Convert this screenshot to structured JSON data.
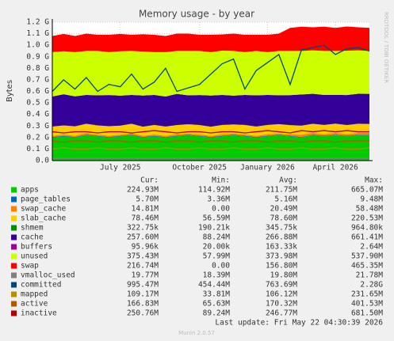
{
  "chart_data": {
    "type": "area",
    "title": "Memory usage - by year",
    "y_label": "Bytes",
    "side_text": "RRDTOOL / TOBI OETIKER",
    "last_update": "Last update: Fri May 22 04:30:39 2026",
    "version": "Munin 2.0.57",
    "legend_headers": [
      "Cur:",
      "Min:",
      "Avg:",
      "Max:"
    ],
    "categories": [
      null,
      null,
      null,
      null,
      null,
      null,
      "July 2025",
      null,
      null,
      null,
      null,
      null,
      null,
      "October 2025",
      null,
      null,
      null,
      null,
      null,
      "January 2026",
      null,
      null,
      null,
      null,
      null,
      "April 2026",
      null,
      null,
      null
    ],
    "ylim": [
      0,
      1.2
    ],
    "yticks": [
      {
        "value": 0,
        "label": "0.0"
      },
      {
        "value": 0.1,
        "label": "0.1 G"
      },
      {
        "value": 0.2,
        "label": "0.2 G"
      },
      {
        "value": 0.3,
        "label": "0.3 G"
      },
      {
        "value": 0.4,
        "label": "0.4 G"
      },
      {
        "value": 0.5,
        "label": "0.5 G"
      },
      {
        "value": 0.6,
        "label": "0.6 G"
      },
      {
        "value": 0.7,
        "label": "0.7 G"
      },
      {
        "value": 0.8,
        "label": "0.8 G"
      },
      {
        "value": 0.9,
        "label": "0.9 G"
      },
      {
        "value": 1.0,
        "label": "1.0 G"
      },
      {
        "value": 1.1,
        "label": "1.1 G"
      },
      {
        "value": 1.2,
        "label": "1.2 G"
      }
    ],
    "grid": true,
    "series": [
      {
        "name": "apps",
        "kind": "area",
        "color": "#00cc00",
        "stats": [
          "224.93M",
          "114.92M",
          "211.75M",
          "665.07M"
        ],
        "values": [
          0.2,
          0.21,
          0.2,
          0.22,
          0.21,
          0.2,
          0.21,
          0.22,
          0.2,
          0.21,
          0.2,
          0.21,
          0.22,
          0.21,
          0.2,
          0.21,
          0.22,
          0.21,
          0.2,
          0.21,
          0.22,
          0.21,
          0.2,
          0.22,
          0.21,
          0.22,
          0.21,
          0.22,
          0.22
        ]
      },
      {
        "name": "page_tables",
        "kind": "area",
        "color": "#0066b3",
        "stats": [
          "5.70M",
          "3.36M",
          "5.16M",
          "9.48M"
        ],
        "values": [
          0.005,
          0.005,
          0.005,
          0.005,
          0.005,
          0.005,
          0.005,
          0.005,
          0.005,
          0.005,
          0.005,
          0.005,
          0.005,
          0.005,
          0.005,
          0.005,
          0.005,
          0.005,
          0.005,
          0.005,
          0.005,
          0.005,
          0.005,
          0.005,
          0.005,
          0.005,
          0.005,
          0.005,
          0.005
        ]
      },
      {
        "name": "swap_cache",
        "kind": "area",
        "color": "#ff8000",
        "stats": [
          "14.81M",
          "0.00",
          "20.49M",
          "58.48M"
        ],
        "values": [
          0.01,
          0.012,
          0.01,
          0.015,
          0.01,
          0.012,
          0.01,
          0.014,
          0.01,
          0.012,
          0.01,
          0.015,
          0.01,
          0.012,
          0.01,
          0.014,
          0.01,
          0.012,
          0.01,
          0.015,
          0.01,
          0.012,
          0.02,
          0.015,
          0.014,
          0.016,
          0.015,
          0.015,
          0.015
        ]
      },
      {
        "name": "slab_cache",
        "kind": "area",
        "color": "#ffcc00",
        "stats": [
          "78.46M",
          "56.59M",
          "78.60M",
          "220.53M"
        ],
        "values": [
          0.08,
          0.078,
          0.082,
          0.079,
          0.08,
          0.081,
          0.078,
          0.08,
          0.079,
          0.082,
          0.08,
          0.078,
          0.08,
          0.081,
          0.079,
          0.08,
          0.078,
          0.082,
          0.08,
          0.079,
          0.081,
          0.08,
          0.078,
          0.079,
          0.08,
          0.079,
          0.078,
          0.079,
          0.078
        ]
      },
      {
        "name": "shmem",
        "kind": "area",
        "color": "#008f00",
        "stats": [
          "322.75k",
          "190.21k",
          "345.75k",
          "964.80k"
        ],
        "values": [
          0.0003,
          0.0003,
          0.0003,
          0.0003,
          0.0003,
          0.0003,
          0.0003,
          0.0003,
          0.0003,
          0.0003,
          0.0003,
          0.0003,
          0.0003,
          0.0003,
          0.0003,
          0.0003,
          0.0003,
          0.0003,
          0.0003,
          0.0003,
          0.0003,
          0.0003,
          0.0003,
          0.0003,
          0.0003,
          0.0003,
          0.0003,
          0.0003,
          0.0003
        ]
      },
      {
        "name": "cache",
        "kind": "area",
        "color": "#330099",
        "stats": [
          "257.60M",
          "88.24M",
          "266.88M",
          "661.41M"
        ],
        "values": [
          0.26,
          0.27,
          0.26,
          0.25,
          0.26,
          0.27,
          0.26,
          0.25,
          0.27,
          0.26,
          0.26,
          0.27,
          0.25,
          0.26,
          0.27,
          0.26,
          0.25,
          0.26,
          0.27,
          0.26,
          0.25,
          0.26,
          0.27,
          0.26,
          0.26,
          0.25,
          0.26,
          0.26,
          0.26
        ]
      },
      {
        "name": "buffers",
        "kind": "area",
        "color": "#990099",
        "stats": [
          "95.96k",
          "20.00k",
          "163.33k",
          "2.64M"
        ],
        "values": [
          0.0001,
          0.0001,
          0.0001,
          0.0001,
          0.0001,
          0.0001,
          0.0001,
          0.0001,
          0.0001,
          0.0001,
          0.0001,
          0.0001,
          0.0001,
          0.0001,
          0.0001,
          0.0001,
          0.0001,
          0.0001,
          0.0001,
          0.0001,
          0.0001,
          0.0001,
          0.0001,
          0.0001,
          0.0001,
          0.0001,
          0.0001,
          0.0001,
          0.0001
        ]
      },
      {
        "name": "unused",
        "kind": "area",
        "color": "#ccff00",
        "stats": [
          "375.43M",
          "57.99M",
          "373.98M",
          "537.90M"
        ],
        "values": [
          0.385,
          0.373,
          0.383,
          0.381,
          0.385,
          0.372,
          0.385,
          0.381,
          0.381,
          0.371,
          0.385,
          0.372,
          0.385,
          0.382,
          0.376,
          0.384,
          0.387,
          0.371,
          0.385,
          0.371,
          0.384,
          0.383,
          0.377,
          0.376,
          0.381,
          0.38,
          0.384,
          0.376,
          0.372
        ]
      },
      {
        "name": "swap",
        "kind": "area",
        "color": "#ff0000",
        "stats": [
          "216.74M",
          "0.00",
          "156.80M",
          "465.35M"
        ],
        "values": [
          0.14,
          0.15,
          0.14,
          0.15,
          0.14,
          0.15,
          0.15,
          0.14,
          0.15,
          0.15,
          0.14,
          0.15,
          0.15,
          0.14,
          0.15,
          0.14,
          0.15,
          0.15,
          0.14,
          0.15,
          0.15,
          0.2,
          0.21,
          0.2,
          0.21,
          0.2,
          0.21,
          0.2,
          0.2
        ]
      },
      {
        "name": "vmalloc_used",
        "kind": "line",
        "color": "#808080",
        "stats": [
          "19.77M",
          "18.39M",
          "19.80M",
          "21.78M"
        ],
        "values": [
          0.02,
          0.02,
          0.02,
          0.02,
          0.02,
          0.02,
          0.02,
          0.02,
          0.02,
          0.02,
          0.02,
          0.02,
          0.02,
          0.02,
          0.02,
          0.02,
          0.02,
          0.02,
          0.02,
          0.02,
          0.02,
          0.02,
          0.02,
          0.02,
          0.02,
          0.02,
          0.02,
          0.02,
          0.02
        ]
      },
      {
        "name": "committed",
        "kind": "line",
        "color": "#00487d",
        "stats": [
          "995.47M",
          "454.44M",
          "763.69M",
          "2.28G"
        ],
        "values": [
          0.6,
          0.7,
          0.62,
          0.72,
          0.6,
          0.66,
          0.64,
          0.75,
          0.62,
          0.68,
          0.8,
          0.6,
          0.63,
          0.66,
          0.75,
          0.84,
          0.88,
          0.62,
          0.78,
          0.85,
          0.92,
          0.66,
          0.96,
          0.98,
          1.0,
          0.92,
          0.97,
          0.98,
          0.95
        ]
      },
      {
        "name": "mapped",
        "kind": "line",
        "color": "#b38f00",
        "stats": [
          "109.17M",
          "33.81M",
          "106.12M",
          "231.65M"
        ],
        "values": [
          0.1,
          0.11,
          0.1,
          0.1,
          0.11,
          0.1,
          0.1,
          0.11,
          0.1,
          0.1,
          0.11,
          0.1,
          0.1,
          0.11,
          0.1,
          0.1,
          0.11,
          0.1,
          0.1,
          0.11,
          0.1,
          0.1,
          0.11,
          0.1,
          0.1,
          0.11,
          0.1,
          0.1,
          0.11
        ]
      },
      {
        "name": "active",
        "kind": "line",
        "color": "#b35a00",
        "stats": [
          "166.83M",
          "65.63M",
          "170.32M",
          "401.53M"
        ],
        "values": [
          0.17,
          0.16,
          0.17,
          0.17,
          0.16,
          0.17,
          0.17,
          0.16,
          0.17,
          0.17,
          0.16,
          0.17,
          0.17,
          0.16,
          0.17,
          0.17,
          0.16,
          0.17,
          0.17,
          0.16,
          0.17,
          0.17,
          0.16,
          0.17,
          0.17,
          0.16,
          0.17,
          0.17,
          0.17
        ]
      },
      {
        "name": "inactive",
        "kind": "line",
        "color": "#b30000",
        "stats": [
          "250.76M",
          "89.24M",
          "246.77M",
          "681.50M"
        ],
        "values": [
          0.25,
          0.24,
          0.25,
          0.25,
          0.24,
          0.25,
          0.25,
          0.24,
          0.25,
          0.26,
          0.25,
          0.24,
          0.25,
          0.25,
          0.24,
          0.25,
          0.25,
          0.24,
          0.25,
          0.26,
          0.25,
          0.24,
          0.26,
          0.25,
          0.26,
          0.25,
          0.26,
          0.25,
          0.25
        ]
      }
    ]
  }
}
